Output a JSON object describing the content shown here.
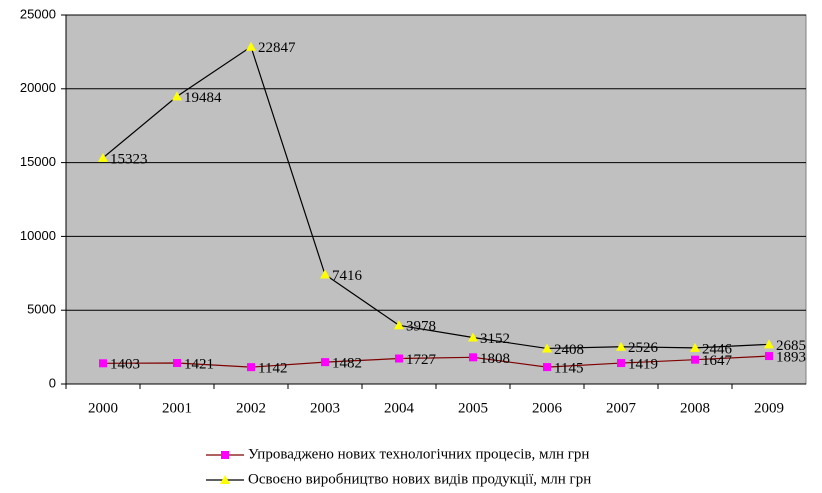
{
  "chart_data": {
    "type": "line",
    "categories": [
      "2000",
      "2001",
      "2002",
      "2003",
      "2004",
      "2005",
      "2006",
      "2007",
      "2008",
      "2009"
    ],
    "series": [
      {
        "name": "Упроваджено нових технологічних процесів, млн грн",
        "color": "#800000",
        "marker_color": "#ff00ff",
        "marker": "square",
        "values": [
          1403,
          1421,
          1142,
          1482,
          1727,
          1808,
          1145,
          1419,
          1647,
          1893
        ]
      },
      {
        "name": "Освоєно виробництво нових видів продукції, млн грн",
        "color": "#000000",
        "marker_color": "#ffff00",
        "marker": "triangle",
        "values": [
          15323,
          19484,
          22847,
          7416,
          3978,
          3152,
          2408,
          2526,
          2446,
          2685
        ]
      }
    ],
    "ylim": [
      0,
      25000
    ],
    "yticks": [
      0,
      5000,
      10000,
      15000,
      20000,
      25000
    ],
    "grid": true,
    "background": "#c0c0c0",
    "legend": "bottom"
  }
}
